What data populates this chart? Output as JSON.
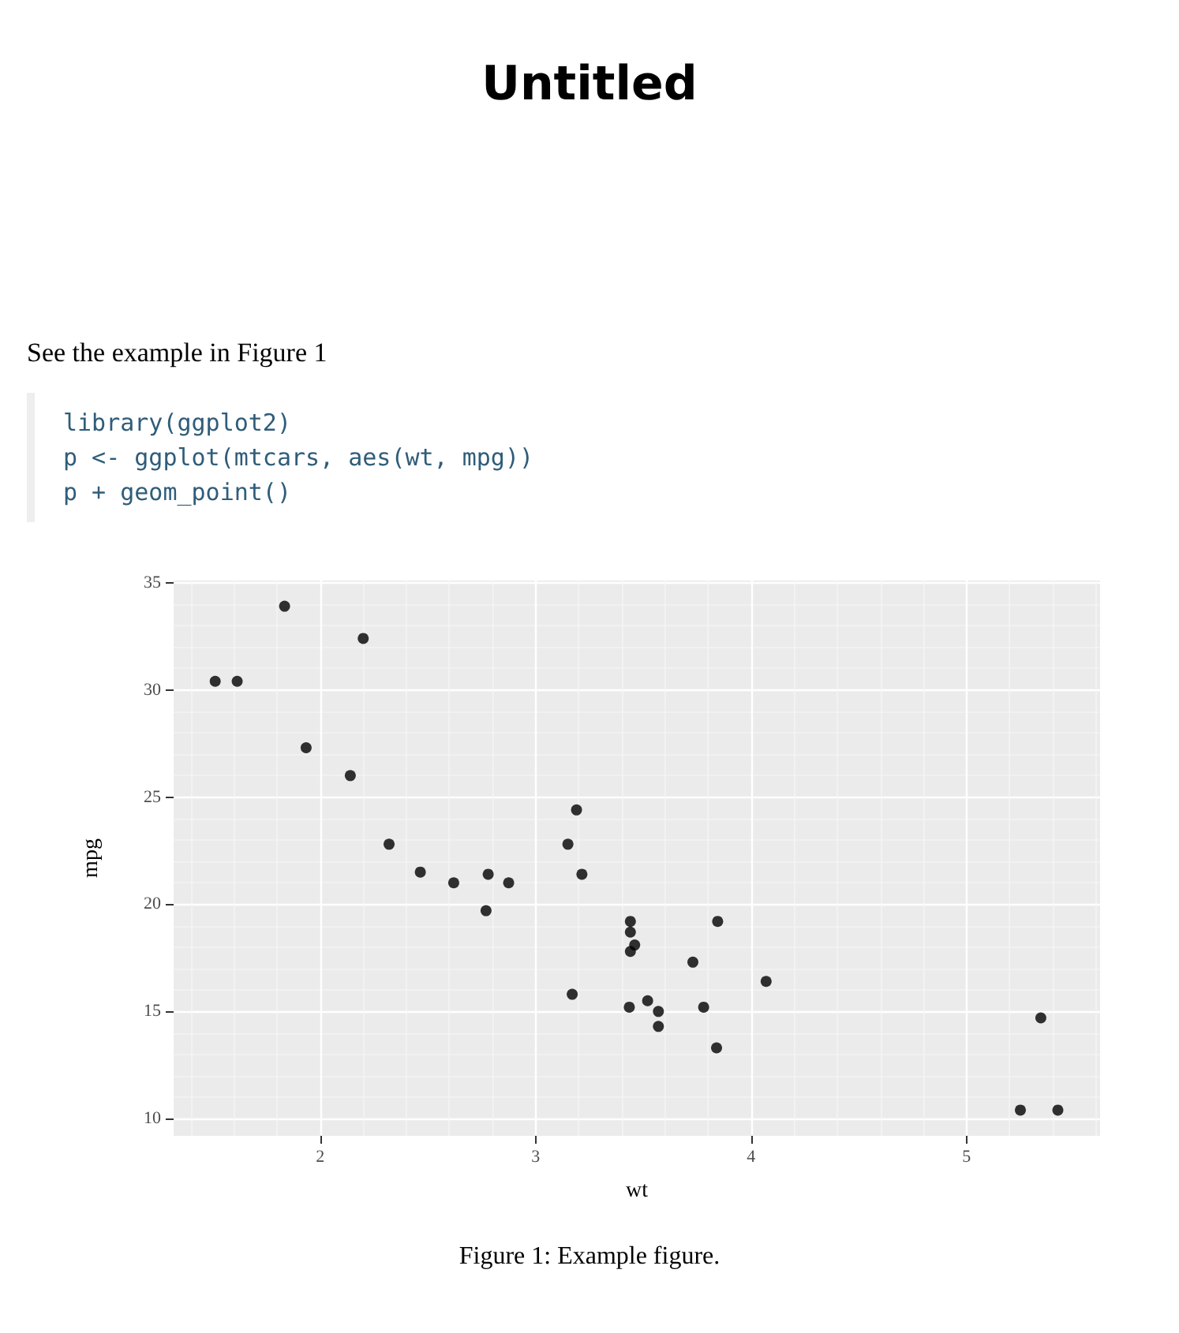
{
  "chart_data": {
    "type": "scatter",
    "title": "Untitled",
    "xlabel": "wt",
    "ylabel": "mpg",
    "annotations": [
      "See the example in Figure 1",
      "library(ggplot2)\np <- ggplot(mtcars, aes(wt, mpg))\np + geom_point()",
      "Figure 1: Example figure."
    ],
    "x": [
      2.62,
      2.875,
      2.32,
      3.215,
      3.44,
      3.46,
      3.57,
      3.19,
      3.15,
      3.44,
      3.44,
      4.07,
      3.73,
      3.78,
      5.25,
      5.424,
      5.345,
      2.2,
      1.615,
      1.835,
      2.465,
      3.52,
      3.435,
      3.84,
      3.845,
      1.935,
      2.14,
      1.513,
      3.17,
      2.77,
      3.57,
      2.78
    ],
    "values": [
      21.0,
      21.0,
      22.8,
      21.4,
      18.7,
      18.1,
      14.3,
      24.4,
      22.8,
      19.2,
      17.8,
      16.4,
      17.3,
      15.2,
      10.4,
      10.4,
      14.7,
      32.4,
      30.4,
      33.9,
      21.5,
      15.5,
      15.2,
      13.3,
      19.2,
      27.3,
      26.0,
      30.4,
      15.8,
      19.7,
      15.0,
      21.4
    ],
    "color": "#000000",
    "marker": "circle",
    "grid": true,
    "xlim": [
      1.32,
      5.62
    ],
    "xticks": [
      2,
      3,
      4,
      5
    ],
    "ylim": [
      9.2,
      35.1
    ],
    "yticks": [
      10,
      15,
      20,
      25,
      30,
      35
    ]
  }
}
